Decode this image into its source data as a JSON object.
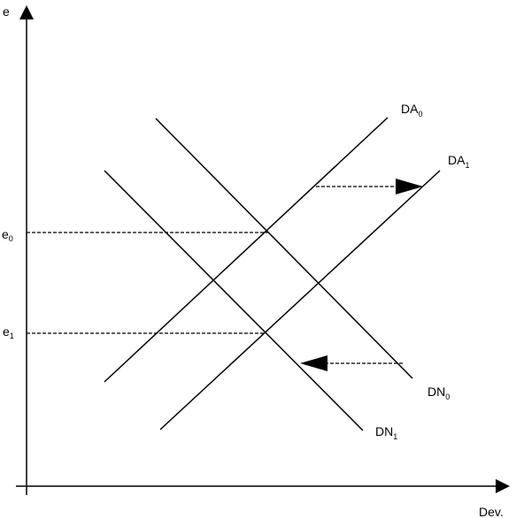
{
  "axes": {
    "y_label": "e",
    "x_label": "Dev."
  },
  "levels": [
    {
      "text": "e",
      "sub": "0"
    },
    {
      "text": "e",
      "sub": "1"
    }
  ],
  "curves": [
    {
      "text": "DA",
      "sub": "0"
    },
    {
      "text": "DA",
      "sub": "1"
    },
    {
      "text": "DN",
      "sub": "0"
    },
    {
      "text": "DN",
      "sub": "1"
    }
  ]
}
